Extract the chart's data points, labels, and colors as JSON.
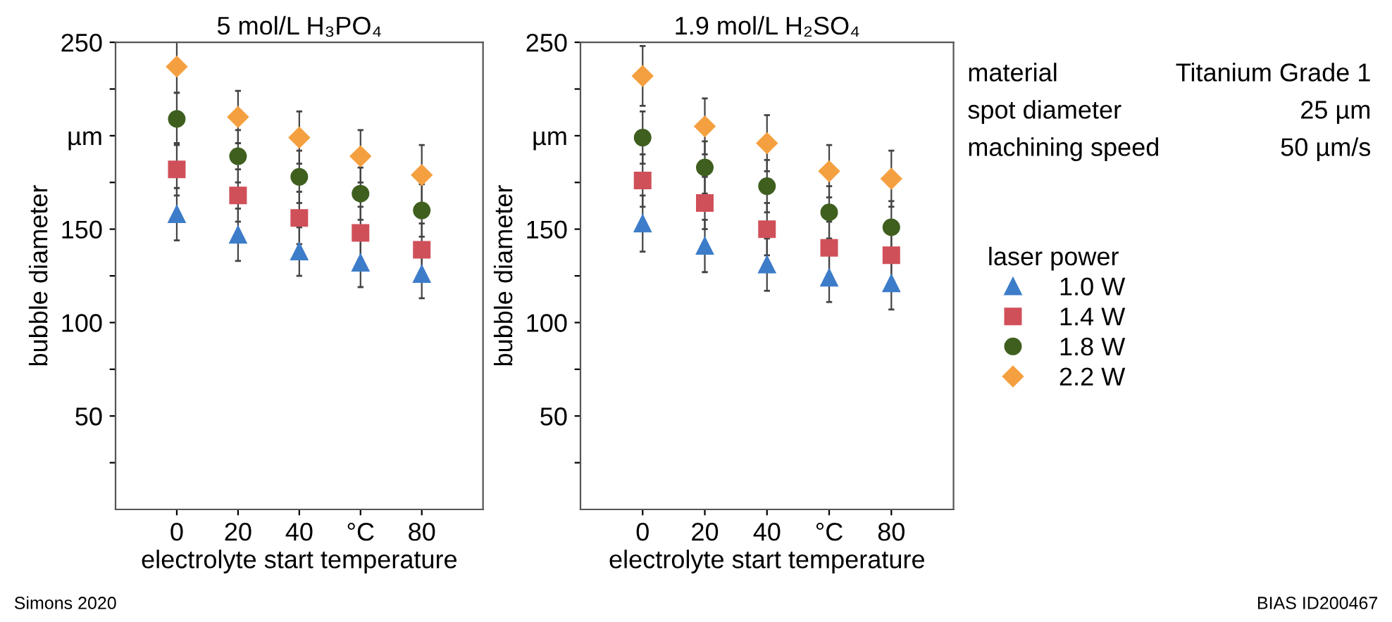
{
  "chart_data": [
    {
      "type": "scatter",
      "title": "5 mol/L H₃PO₄",
      "xlabel": "electrolyte start temperature",
      "ylabel": "bubble diameter",
      "x": [
        0,
        20,
        40,
        60,
        80
      ],
      "xlim": [
        -20,
        100
      ],
      "xticks": [
        0,
        20,
        40,
        {
          "value": 60,
          "label": "°C"
        },
        80
      ],
      "ylim": [
        0,
        250
      ],
      "yticks": [
        {
          "value": 25,
          "label": null
        },
        50,
        {
          "value": 75,
          "label": null
        },
        100,
        {
          "value": 125,
          "label": null
        },
        150,
        {
          "value": 175,
          "label": null
        },
        {
          "value": 200,
          "label": "µm"
        },
        {
          "value": 225,
          "label": null
        },
        250
      ],
      "grid": false,
      "legend": false,
      "series": [
        {
          "color": "#3d7cc9",
          "marker": "triangle",
          "values": [
            158,
            147,
            138,
            132,
            126
          ],
          "errors": [
            14,
            14,
            13,
            13,
            13
          ]
        },
        {
          "color": "#d0505a",
          "marker": "square",
          "values": [
            182,
            168,
            156,
            148,
            139
          ],
          "errors": [
            14,
            14,
            14,
            14,
            14
          ]
        },
        {
          "color": "#3f5f1f",
          "marker": "circle",
          "values": [
            209,
            189,
            178,
            169,
            160
          ],
          "errors": [
            14,
            14,
            14,
            14,
            14
          ]
        },
        {
          "color": "#f5a040",
          "marker": "diamond",
          "values": [
            237,
            210,
            199,
            189,
            179
          ],
          "errors": [
            14,
            14,
            14,
            14,
            16
          ]
        }
      ],
      "annotations": [
        "Simons 2020"
      ]
    },
    {
      "type": "scatter",
      "title": "1.9 mol/L H₂SO₄",
      "xlabel": "electrolyte start temperature",
      "ylabel": "bubble diameter",
      "x": [
        0,
        20,
        40,
        60,
        80
      ],
      "xlim": [
        -20,
        100
      ],
      "xticks": [
        0,
        20,
        40,
        {
          "value": 60,
          "label": "°C"
        },
        80
      ],
      "ylim": [
        0,
        250
      ],
      "yticks": [
        {
          "value": 25,
          "label": null
        },
        50,
        {
          "value": 75,
          "label": null
        },
        100,
        {
          "value": 125,
          "label": null
        },
        150,
        {
          "value": 175,
          "label": null
        },
        {
          "value": 200,
          "label": "µm"
        },
        {
          "value": 225,
          "label": null
        },
        250
      ],
      "grid": false,
      "legend": "right",
      "legend_title": "laser power",
      "series": [
        {
          "name": "1.0 W",
          "color": "#3d7cc9",
          "marker": "triangle",
          "values": [
            153,
            141,
            131,
            124,
            121
          ],
          "errors": [
            15,
            14,
            14,
            13,
            14
          ]
        },
        {
          "name": "1.4 W",
          "color": "#d0505a",
          "marker": "square",
          "values": [
            176,
            164,
            150,
            140,
            136
          ],
          "errors": [
            14,
            14,
            14,
            14,
            14
          ]
        },
        {
          "name": "1.8 W",
          "color": "#3f5f1f",
          "marker": "circle",
          "values": [
            199,
            183,
            173,
            159,
            151
          ],
          "errors": [
            14,
            14,
            14,
            14,
            14
          ]
        },
        {
          "name": "2.2 W",
          "color": "#f5a040",
          "marker": "diamond",
          "values": [
            232,
            205,
            196,
            181,
            177
          ],
          "errors": [
            16,
            15,
            15,
            14,
            15
          ]
        }
      ],
      "annotations": [
        "material",
        "Titanium Grade 1",
        "spot diameter",
        "25 µm",
        "machining speed",
        "50 µm/s",
        "BIAS ID200467"
      ]
    }
  ]
}
